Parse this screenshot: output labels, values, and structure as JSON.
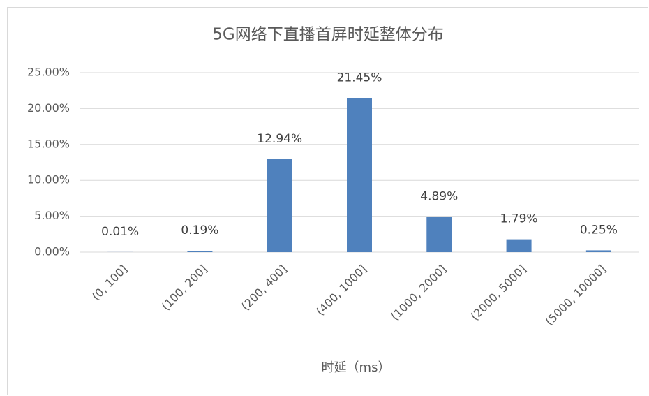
{
  "chart_data": {
    "type": "bar",
    "title": "5G网络下直播首屏时延整体分布",
    "x_label": "时延（ms）",
    "categories": [
      "(0, 100]",
      "(100, 200]",
      "(200, 400]",
      "(400, 1000]",
      "(1000, 2000]",
      "(2000, 5000]",
      "(5000, 10000]"
    ],
    "values": [
      0.01,
      0.19,
      12.94,
      21.45,
      4.89,
      1.79,
      0.25
    ],
    "value_labels": [
      "0.01%",
      "0.19%",
      "12.94%",
      "21.45%",
      "4.89%",
      "1.79%",
      "0.25%"
    ],
    "color": "#4f81bd",
    "ylim": [
      0,
      25
    ],
    "yticks": [
      {
        "value": 0,
        "label": "0.00%"
      },
      {
        "value": 5,
        "label": "5.00%"
      },
      {
        "value": 10,
        "label": "10.00%"
      },
      {
        "value": 15,
        "label": "15.00%"
      },
      {
        "value": 20,
        "label": "20.00%"
      },
      {
        "value": 25,
        "label": "25.00%"
      }
    ],
    "grid": true
  }
}
